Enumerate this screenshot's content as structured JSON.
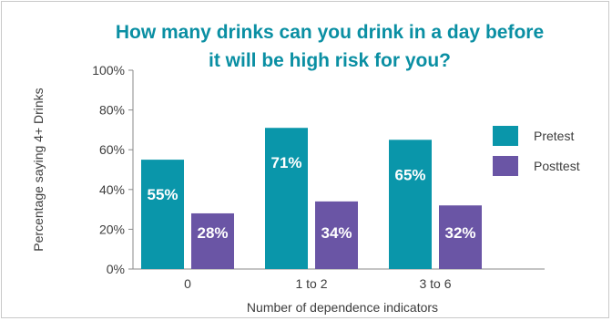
{
  "chart_data": {
    "type": "bar",
    "title_lines": [
      "How many drinks can you drink in a day before",
      "it will be high risk for you?"
    ],
    "xlabel": "Number of dependence indicators",
    "ylabel": "Percentage saying 4+ Drinks",
    "categories": [
      "0",
      "1 to 2",
      "3 to 6"
    ],
    "series": [
      {
        "name": "Pretest",
        "values": [
          55,
          71,
          65
        ],
        "labels": [
          "55%",
          "71%",
          "65%"
        ],
        "color": "#0a96aa"
      },
      {
        "name": "Posttest",
        "values": [
          28,
          34,
          32
        ],
        "labels": [
          "28%",
          "34%",
          "32%"
        ],
        "color": "#6a55a5"
      }
    ],
    "ylim": [
      0,
      100
    ],
    "yticks": [
      "0%",
      "20%",
      "40%",
      "60%",
      "80%",
      "100%"
    ],
    "grid": false,
    "legend_position": "right",
    "title_color": "#0a8fa3"
  }
}
